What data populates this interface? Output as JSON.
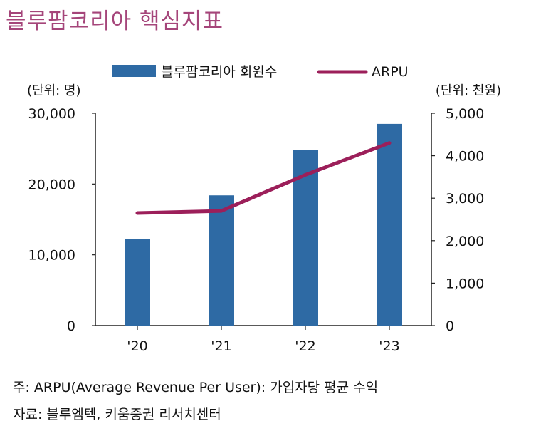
{
  "title": "블루팜코리아 핵심지표",
  "chart_data": {
    "type": "bar+line",
    "categories": [
      "'20",
      "'21",
      "'22",
      "'23"
    ],
    "series": [
      {
        "name": "블루팜코리아 회원수",
        "type": "bar",
        "axis": "left",
        "color": "#2e6aa4",
        "values": [
          12200,
          18400,
          24800,
          28500
        ]
      },
      {
        "name": "ARPU",
        "type": "line",
        "axis": "right",
        "color": "#9c1f5a",
        "values": [
          2650,
          2700,
          3550,
          4300
        ]
      }
    ],
    "left_axis": {
      "unit_label": "(단위: 명)",
      "ylim": [
        0,
        30000
      ],
      "ticks": [
        "0",
        "10,000",
        "20,000",
        "30,000"
      ],
      "tick_values": [
        0,
        10000,
        20000,
        30000
      ]
    },
    "right_axis": {
      "unit_label": "(단위: 천원)",
      "ylim": [
        0,
        5000
      ],
      "ticks": [
        "0",
        "1,000",
        "2,000",
        "3,000",
        "4,000",
        "5,000"
      ],
      "tick_values": [
        0,
        1000,
        2000,
        3000,
        4000,
        5000
      ]
    },
    "legend": {
      "placement": "top-center",
      "entries": [
        "블루팜코리아 회원수",
        "ARPU"
      ]
    },
    "grid": false
  },
  "notes": {
    "note": "주: ARPU(Average Revenue Per User): 가입자당 평균 수익",
    "source": "자료: 블루엠텍, 키움증권 리서치센터"
  }
}
